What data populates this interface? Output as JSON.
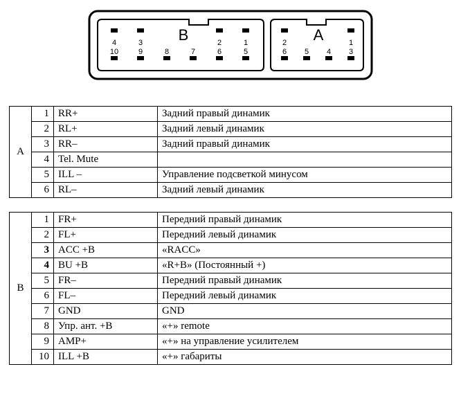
{
  "connector": {
    "outer_stroke": "#000000",
    "inner_stroke": "#000000",
    "bg": "#ffffff",
    "label_font_size": 22,
    "num_font_size": 11,
    "blocks": {
      "B": {
        "label": "B",
        "top_row": [
          {
            "n": "4"
          },
          {
            "n": "3"
          },
          {
            "gap": true
          },
          {
            "n": "2"
          },
          {
            "n": "1"
          }
        ],
        "bottom_row": [
          {
            "n": "10"
          },
          {
            "n": "9"
          },
          {
            "n": "8"
          },
          {
            "n": "7"
          },
          {
            "n": "6"
          },
          {
            "n": "5"
          }
        ]
      },
      "A": {
        "label": "A",
        "top_row": [
          {
            "n": "2"
          },
          {
            "gap": true
          },
          {
            "n": "1"
          }
        ],
        "bottom_row": [
          {
            "n": "6"
          },
          {
            "n": "5"
          },
          {
            "n": "4"
          },
          {
            "n": "3"
          }
        ]
      }
    }
  },
  "tables": {
    "A": {
      "group_label": "A",
      "rows": [
        {
          "n": "1",
          "sig": "RR+",
          "desc": "Задний правый динамик"
        },
        {
          "n": "2",
          "sig": "RL+",
          "desc": "Задний левый динамик"
        },
        {
          "n": "3",
          "sig": "RR–",
          "desc": "Задний правый динамик"
        },
        {
          "n": "4",
          "sig": "Tel. Mute",
          "desc": ""
        },
        {
          "n": "5",
          "sig": "ILL –",
          "desc": "Управление подсветкой минусом"
        },
        {
          "n": "6",
          "sig": "RL–",
          "desc": "Задний левый динамик"
        }
      ]
    },
    "B": {
      "group_label": "B",
      "rows": [
        {
          "n": "1",
          "sig": "FR+",
          "desc": "Передний правый динамик"
        },
        {
          "n": "2",
          "sig": "FL+",
          "desc": "Передний левый динамик"
        },
        {
          "n": "3",
          "sig": "ACC +B",
          "desc": "«RACC»",
          "bold": true
        },
        {
          "n": "4",
          "sig": "BU +B",
          "desc": "«R+B» (Постоянный +)",
          "bold": true
        },
        {
          "n": "5",
          "sig": "FR–",
          "desc": "Передний правый динамик"
        },
        {
          "n": "6",
          "sig": "FL–",
          "desc": "Передний левый динамик"
        },
        {
          "n": "7",
          "sig": "GND",
          "desc": "GND"
        },
        {
          "n": "8",
          "sig": "Упр.  ант. +B",
          "desc": "«+» remote"
        },
        {
          "n": "9",
          "sig": "AMP+",
          "desc": "«+» на управление усилителем"
        },
        {
          "n": "10",
          "sig": "ILL +B",
          "desc": "«+» габариты"
        }
      ]
    }
  }
}
